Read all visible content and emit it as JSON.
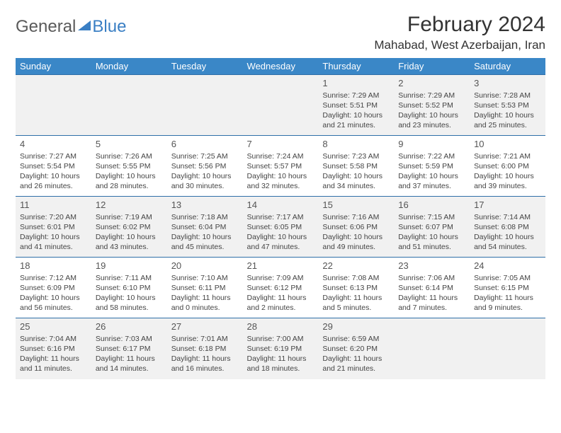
{
  "logo": {
    "part1": "General",
    "part2": "Blue"
  },
  "title": "February 2024",
  "location": "Mahabad, West Azerbaijan, Iran",
  "columns": [
    "Sunday",
    "Monday",
    "Tuesday",
    "Wednesday",
    "Thursday",
    "Friday",
    "Saturday"
  ],
  "colors": {
    "header_bg": "#3a87c7",
    "header_text": "#ffffff",
    "rule": "#2e6fa8",
    "alt_row_bg": "#f1f1f1",
    "logo_blue": "#3a7fc4"
  },
  "weeks": [
    [
      null,
      null,
      null,
      null,
      {
        "n": "1",
        "sr": "Sunrise: 7:29 AM",
        "ss": "Sunset: 5:51 PM",
        "dl1": "Daylight: 10 hours",
        "dl2": "and 21 minutes."
      },
      {
        "n": "2",
        "sr": "Sunrise: 7:29 AM",
        "ss": "Sunset: 5:52 PM",
        "dl1": "Daylight: 10 hours",
        "dl2": "and 23 minutes."
      },
      {
        "n": "3",
        "sr": "Sunrise: 7:28 AM",
        "ss": "Sunset: 5:53 PM",
        "dl1": "Daylight: 10 hours",
        "dl2": "and 25 minutes."
      }
    ],
    [
      {
        "n": "4",
        "sr": "Sunrise: 7:27 AM",
        "ss": "Sunset: 5:54 PM",
        "dl1": "Daylight: 10 hours",
        "dl2": "and 26 minutes."
      },
      {
        "n": "5",
        "sr": "Sunrise: 7:26 AM",
        "ss": "Sunset: 5:55 PM",
        "dl1": "Daylight: 10 hours",
        "dl2": "and 28 minutes."
      },
      {
        "n": "6",
        "sr": "Sunrise: 7:25 AM",
        "ss": "Sunset: 5:56 PM",
        "dl1": "Daylight: 10 hours",
        "dl2": "and 30 minutes."
      },
      {
        "n": "7",
        "sr": "Sunrise: 7:24 AM",
        "ss": "Sunset: 5:57 PM",
        "dl1": "Daylight: 10 hours",
        "dl2": "and 32 minutes."
      },
      {
        "n": "8",
        "sr": "Sunrise: 7:23 AM",
        "ss": "Sunset: 5:58 PM",
        "dl1": "Daylight: 10 hours",
        "dl2": "and 34 minutes."
      },
      {
        "n": "9",
        "sr": "Sunrise: 7:22 AM",
        "ss": "Sunset: 5:59 PM",
        "dl1": "Daylight: 10 hours",
        "dl2": "and 37 minutes."
      },
      {
        "n": "10",
        "sr": "Sunrise: 7:21 AM",
        "ss": "Sunset: 6:00 PM",
        "dl1": "Daylight: 10 hours",
        "dl2": "and 39 minutes."
      }
    ],
    [
      {
        "n": "11",
        "sr": "Sunrise: 7:20 AM",
        "ss": "Sunset: 6:01 PM",
        "dl1": "Daylight: 10 hours",
        "dl2": "and 41 minutes."
      },
      {
        "n": "12",
        "sr": "Sunrise: 7:19 AM",
        "ss": "Sunset: 6:02 PM",
        "dl1": "Daylight: 10 hours",
        "dl2": "and 43 minutes."
      },
      {
        "n": "13",
        "sr": "Sunrise: 7:18 AM",
        "ss": "Sunset: 6:04 PM",
        "dl1": "Daylight: 10 hours",
        "dl2": "and 45 minutes."
      },
      {
        "n": "14",
        "sr": "Sunrise: 7:17 AM",
        "ss": "Sunset: 6:05 PM",
        "dl1": "Daylight: 10 hours",
        "dl2": "and 47 minutes."
      },
      {
        "n": "15",
        "sr": "Sunrise: 7:16 AM",
        "ss": "Sunset: 6:06 PM",
        "dl1": "Daylight: 10 hours",
        "dl2": "and 49 minutes."
      },
      {
        "n": "16",
        "sr": "Sunrise: 7:15 AM",
        "ss": "Sunset: 6:07 PM",
        "dl1": "Daylight: 10 hours",
        "dl2": "and 51 minutes."
      },
      {
        "n": "17",
        "sr": "Sunrise: 7:14 AM",
        "ss": "Sunset: 6:08 PM",
        "dl1": "Daylight: 10 hours",
        "dl2": "and 54 minutes."
      }
    ],
    [
      {
        "n": "18",
        "sr": "Sunrise: 7:12 AM",
        "ss": "Sunset: 6:09 PM",
        "dl1": "Daylight: 10 hours",
        "dl2": "and 56 minutes."
      },
      {
        "n": "19",
        "sr": "Sunrise: 7:11 AM",
        "ss": "Sunset: 6:10 PM",
        "dl1": "Daylight: 10 hours",
        "dl2": "and 58 minutes."
      },
      {
        "n": "20",
        "sr": "Sunrise: 7:10 AM",
        "ss": "Sunset: 6:11 PM",
        "dl1": "Daylight: 11 hours",
        "dl2": "and 0 minutes."
      },
      {
        "n": "21",
        "sr": "Sunrise: 7:09 AM",
        "ss": "Sunset: 6:12 PM",
        "dl1": "Daylight: 11 hours",
        "dl2": "and 2 minutes."
      },
      {
        "n": "22",
        "sr": "Sunrise: 7:08 AM",
        "ss": "Sunset: 6:13 PM",
        "dl1": "Daylight: 11 hours",
        "dl2": "and 5 minutes."
      },
      {
        "n": "23",
        "sr": "Sunrise: 7:06 AM",
        "ss": "Sunset: 6:14 PM",
        "dl1": "Daylight: 11 hours",
        "dl2": "and 7 minutes."
      },
      {
        "n": "24",
        "sr": "Sunrise: 7:05 AM",
        "ss": "Sunset: 6:15 PM",
        "dl1": "Daylight: 11 hours",
        "dl2": "and 9 minutes."
      }
    ],
    [
      {
        "n": "25",
        "sr": "Sunrise: 7:04 AM",
        "ss": "Sunset: 6:16 PM",
        "dl1": "Daylight: 11 hours",
        "dl2": "and 11 minutes."
      },
      {
        "n": "26",
        "sr": "Sunrise: 7:03 AM",
        "ss": "Sunset: 6:17 PM",
        "dl1": "Daylight: 11 hours",
        "dl2": "and 14 minutes."
      },
      {
        "n": "27",
        "sr": "Sunrise: 7:01 AM",
        "ss": "Sunset: 6:18 PM",
        "dl1": "Daylight: 11 hours",
        "dl2": "and 16 minutes."
      },
      {
        "n": "28",
        "sr": "Sunrise: 7:00 AM",
        "ss": "Sunset: 6:19 PM",
        "dl1": "Daylight: 11 hours",
        "dl2": "and 18 minutes."
      },
      {
        "n": "29",
        "sr": "Sunrise: 6:59 AM",
        "ss": "Sunset: 6:20 PM",
        "dl1": "Daylight: 11 hours",
        "dl2": "and 21 minutes."
      },
      null,
      null
    ]
  ]
}
